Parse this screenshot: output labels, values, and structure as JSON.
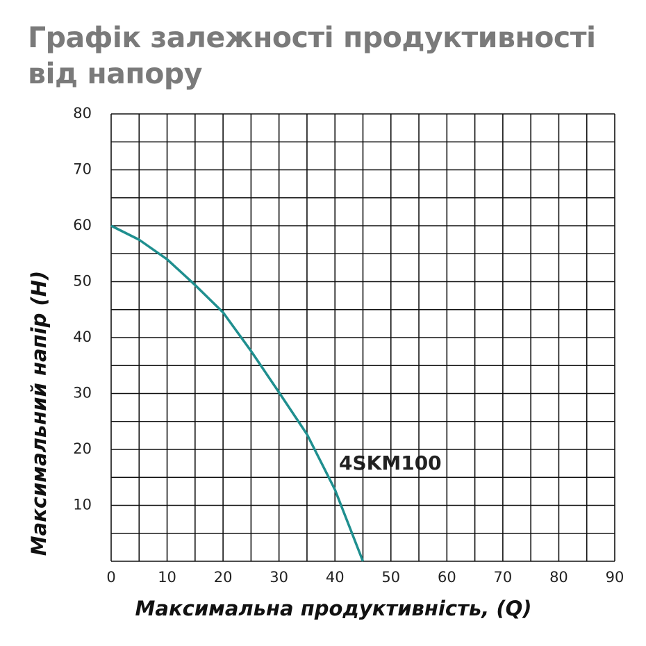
{
  "chart_data": {
    "type": "line",
    "title": "Графік залежності продуктивності від напору",
    "x_label": "Максимальна продуктивність, (Q)",
    "y_label": "Максимальний напір (H)",
    "annotation": "4SKM100",
    "x": [
      0,
      5,
      10,
      15,
      20,
      25,
      30,
      35,
      40,
      45
    ],
    "series": [
      {
        "name": "4SKM100",
        "color": "#1f8f8f",
        "values": [
          60,
          57.5,
          54,
          49.4,
          44.5,
          37.6,
          30.2,
          22.7,
          12.8,
          0
        ]
      }
    ],
    "xlim": [
      0,
      90
    ],
    "ylim": [
      0,
      80
    ],
    "xticks": [
      0,
      10,
      20,
      30,
      40,
      50,
      60,
      70,
      80,
      90
    ],
    "yticks": [
      10,
      20,
      30,
      40,
      50,
      60,
      70,
      80
    ],
    "x_grid": [
      0,
      5,
      10,
      15,
      20,
      25,
      30,
      35,
      40,
      45,
      50,
      55,
      60,
      65,
      70,
      75,
      80,
      85,
      90
    ],
    "y_grid": [
      0,
      5,
      10,
      15,
      20,
      25,
      30,
      35,
      40,
      45,
      50,
      55,
      60,
      65,
      70,
      75,
      80
    ],
    "grid": true
  }
}
